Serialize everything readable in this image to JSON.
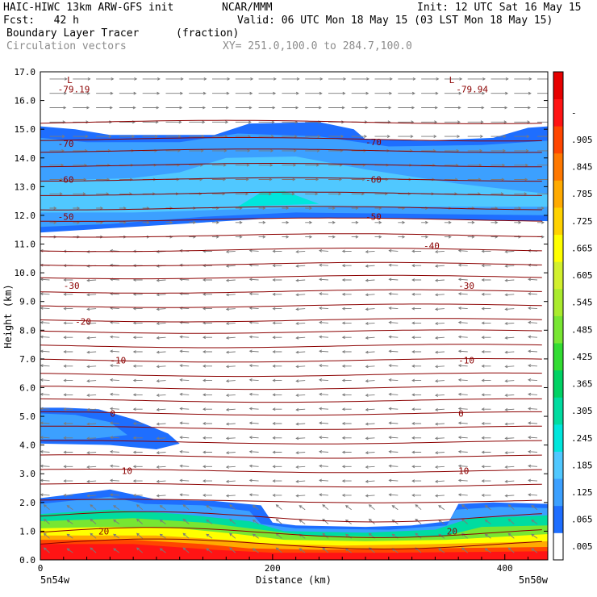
{
  "header": {
    "model": "HAIC-HIWC 13km ARW-GFS init",
    "org": "NCAR/MMM",
    "init": "Init: 12 UTC Sat 16 May 15",
    "fcst": "Fcst:   42 h",
    "valid": "Valid: 06 UTC Mon 18 May 15 (03 LST Mon 18 May 15)",
    "field": "Boundary Layer Tracer",
    "units": "(fraction)",
    "vectors": "Circulation vectors",
    "xy": "XY= 251.0,100.0 to 284.7,100.0"
  },
  "chart_data": {
    "type": "heatmap",
    "xlabel": "Distance (km)",
    "ylabel": "Height (km)",
    "xlim": [
      0,
      437
    ],
    "ylim": [
      0,
      17
    ],
    "x_ticks": [
      "0",
      "200",
      "400"
    ],
    "y_ticks": [
      "0.0",
      "1.0",
      "2.0",
      "3.0",
      "4.0",
      "5.0",
      "6.0",
      "7.0",
      "8.0",
      "9.0",
      "10.0",
      "11.0",
      "12.0",
      "13.0",
      "14.0",
      "15.0",
      "16.0",
      "17.0"
    ],
    "x_end_labels": {
      "left": "5n54w",
      "right": "5n50w"
    },
    "colorbar": {
      "labels": [
        ".005",
        ".065",
        ".125",
        ".185",
        ".245",
        ".305",
        ".365",
        ".425",
        ".485",
        ".545",
        ".605",
        ".665",
        ".725",
        ".785",
        ".845",
        ".905",
        "-"
      ],
      "colors": [
        "#ffffff",
        "#1e6eff",
        "#3ca0ff",
        "#50c8ff",
        "#00e6dc",
        "#00dca0",
        "#00d264",
        "#32dc32",
        "#78e632",
        "#aaeb2d",
        "#d2f02d",
        "#ffff00",
        "#ffd200",
        "#ffaa00",
        "#ff7800",
        "#ff4600",
        "#ff1414",
        "#e60000"
      ]
    },
    "temperature_contours": {
      "color": "#8b0000",
      "labels": [
        {
          "text": "-79.19",
          "x": 15,
          "y": 16.4
        },
        {
          "text": "-79.94",
          "x": 358,
          "y": 16.4
        },
        {
          "text": "L",
          "x": 23,
          "y": 16.72
        },
        {
          "text": "L",
          "x": 352,
          "y": 16.72
        },
        {
          "text": "-70",
          "x": 15,
          "y": 14.5
        },
        {
          "text": "-70",
          "x": 280,
          "y": 14.55
        },
        {
          "text": "-60",
          "x": 15,
          "y": 13.25
        },
        {
          "text": "-60",
          "x": 280,
          "y": 13.25
        },
        {
          "text": "-50",
          "x": 15,
          "y": 11.95
        },
        {
          "text": "-50",
          "x": 280,
          "y": 11.95
        },
        {
          "text": "-40",
          "x": 330,
          "y": 10.95
        },
        {
          "text": "-30",
          "x": 20,
          "y": 9.55
        },
        {
          "text": "-30",
          "x": 360,
          "y": 9.55
        },
        {
          "text": "-20",
          "x": 30,
          "y": 8.3
        },
        {
          "text": "-10",
          "x": 60,
          "y": 6.95
        },
        {
          "text": "-10",
          "x": 360,
          "y": 6.95
        },
        {
          "text": "0",
          "x": 60,
          "y": 5.1
        },
        {
          "text": "0",
          "x": 360,
          "y": 5.1
        },
        {
          "text": "10",
          "x": 70,
          "y": 3.1
        },
        {
          "text": "10",
          "x": 360,
          "y": 3.1
        },
        {
          "text": "20",
          "x": 50,
          "y": 1.0
        },
        {
          "text": "20",
          "x": 350,
          "y": 1.0
        }
      ]
    }
  }
}
